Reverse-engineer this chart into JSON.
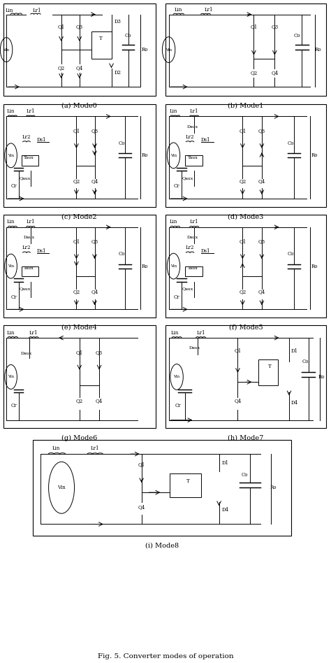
{
  "title": "Fig. 5. Converter modes of operation",
  "background_color": "#ffffff",
  "fig_width": 4.74,
  "fig_height": 9.48,
  "dpi": 100,
  "panels": [
    {
      "label": "(a) Mode0",
      "row": 0,
      "col": 0
    },
    {
      "label": "(b) Mode1",
      "row": 0,
      "col": 1
    },
    {
      "label": "(c) Mode2",
      "row": 1,
      "col": 0
    },
    {
      "label": "(d) Mode3",
      "row": 1,
      "col": 1
    },
    {
      "label": "(e) Mode4",
      "row": 2,
      "col": 0
    },
    {
      "label": "(f) Mode5",
      "row": 2,
      "col": 1
    },
    {
      "label": "(g) Mode6",
      "row": 3,
      "col": 0
    },
    {
      "label": "(h) Mode7",
      "row": 3,
      "col": 1
    },
    {
      "label": "(i) Mode8",
      "row": 4,
      "col": 0
    }
  ],
  "line_color": "#000000",
  "text_color": "#000000",
  "font_size_label": 7,
  "font_size_small": 5,
  "font_size_title": 7.5
}
